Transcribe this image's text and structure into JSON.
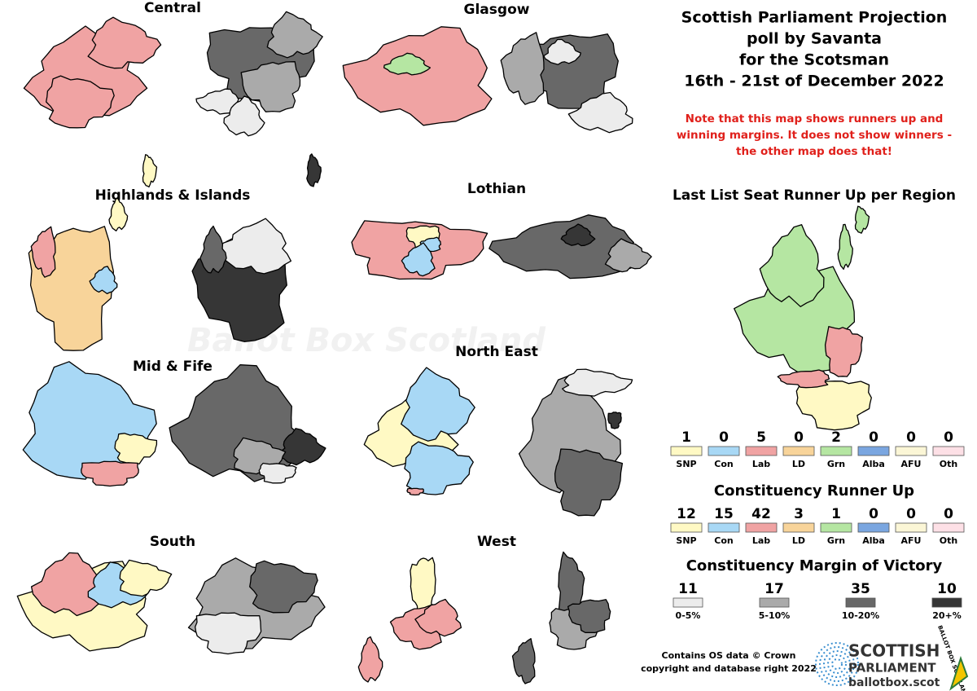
{
  "title": [
    "Scottish Parliament Projection",
    "poll by Savanta",
    "for the Scotsman",
    "16th - 21st of December 2022"
  ],
  "note": [
    "Note that this map shows runners up and",
    "winning margins. It does not show winners -",
    "the other map does that!"
  ],
  "watermark": "Ballot Box Scotland",
  "regions": [
    "Central",
    "Glasgow",
    "Highlands & Islands",
    "Lothian",
    "Mid & Fife",
    "North East",
    "South",
    "West"
  ],
  "list_runner_up": {
    "title": "Last List Seat Runner Up per Region",
    "items": [
      {
        "label": "SNP",
        "count": 1,
        "color": "#fff9c4"
      },
      {
        "label": "Con",
        "count": 0,
        "color": "#a8d8f5"
      },
      {
        "label": "Lab",
        "count": 5,
        "color": "#f0a3a3"
      },
      {
        "label": "LD",
        "count": 0,
        "color": "#f8d49a"
      },
      {
        "label": "Grn",
        "count": 2,
        "color": "#b5e6a2"
      },
      {
        "label": "Alba",
        "count": 0,
        "color": "#7aa6e0"
      },
      {
        "label": "AFU",
        "count": 0,
        "color": "#fbf6d6"
      },
      {
        "label": "Oth",
        "count": 0,
        "color": "#fde0e6"
      }
    ]
  },
  "constituency_runner_up": {
    "title": "Constituency Runner Up",
    "items": [
      {
        "label": "SNP",
        "count": 12,
        "color": "#fff9c4"
      },
      {
        "label": "Con",
        "count": 15,
        "color": "#a8d8f5"
      },
      {
        "label": "Lab",
        "count": 42,
        "color": "#f0a3a3"
      },
      {
        "label": "LD",
        "count": 3,
        "color": "#f8d49a"
      },
      {
        "label": "Grn",
        "count": 1,
        "color": "#b5e6a2"
      },
      {
        "label": "Alba",
        "count": 0,
        "color": "#7aa6e0"
      },
      {
        "label": "AFU",
        "count": 0,
        "color": "#fbf6d6"
      },
      {
        "label": "Oth",
        "count": 0,
        "color": "#fde0e6"
      }
    ]
  },
  "margin": {
    "title": "Constituency Margin of Victory",
    "items": [
      {
        "label": "0-5%",
        "count": 11,
        "color": "#ececec"
      },
      {
        "label": "5-10%",
        "count": 17,
        "color": "#aaaaaa"
      },
      {
        "label": "10-20%",
        "count": 35,
        "color": "#686868"
      },
      {
        "label": "20+%",
        "count": 10,
        "color": "#363636"
      }
    ]
  },
  "credit": [
    "Contains OS data © Crown",
    "copyright and database right 2022"
  ],
  "logo": {
    "line1": "SCOTTISH",
    "line2": "PARLIAMENT",
    "url": "ballotbox.scot",
    "ring": "BALLOT BOX SCOTLAND"
  }
}
